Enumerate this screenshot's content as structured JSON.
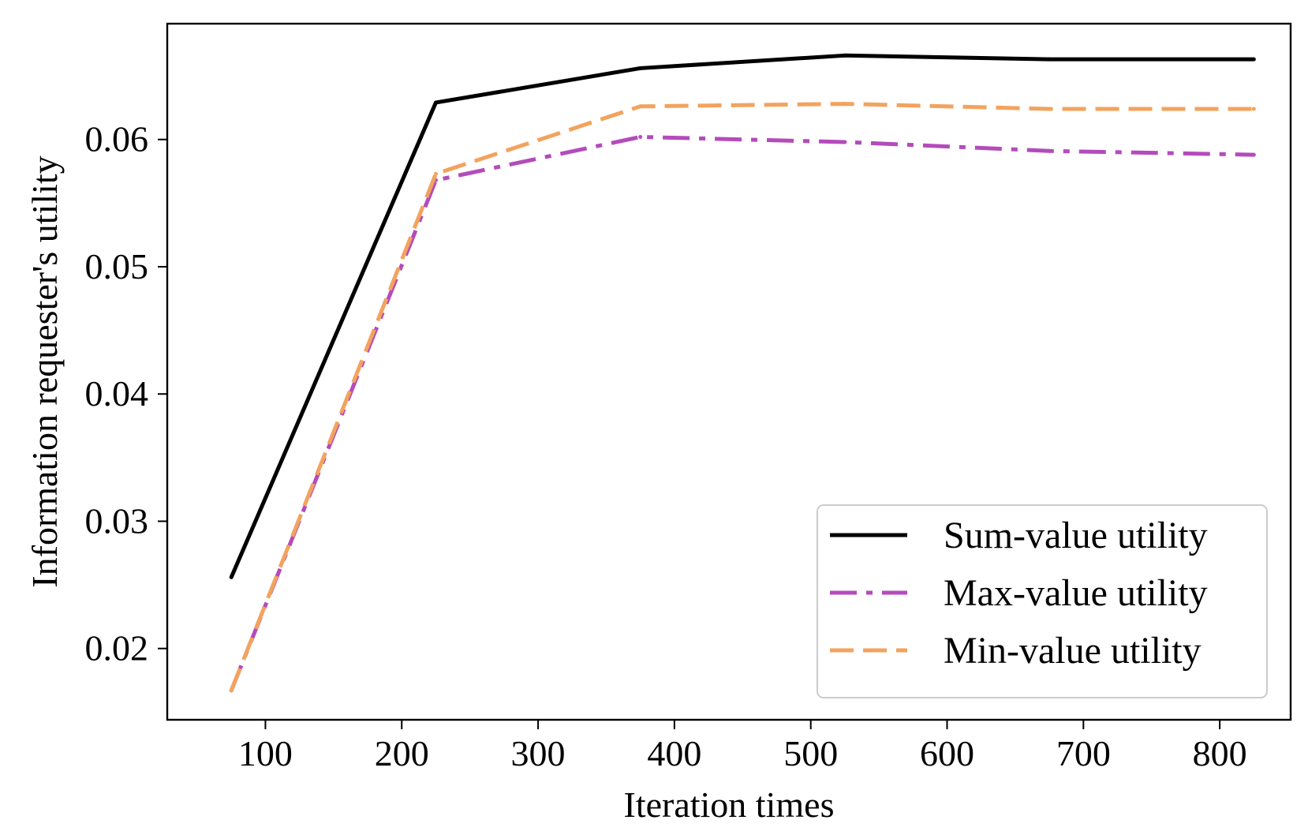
{
  "chart_data": {
    "type": "line",
    "title": "",
    "xlabel": "Iteration times",
    "ylabel": "Information requester's utility",
    "xlim": [
      28,
      852
    ],
    "ylim": [
      0.0144,
      0.0691
    ],
    "xticks": [
      100,
      200,
      300,
      400,
      500,
      600,
      700,
      800
    ],
    "yticks": [
      0.02,
      0.03,
      0.04,
      0.05,
      0.06
    ],
    "ytick_labels": [
      "0.02",
      "0.03",
      "0.04",
      "0.05",
      "0.06"
    ],
    "grid": false,
    "legend_position": "lower-right",
    "x": [
      75,
      225,
      375,
      525,
      675,
      825
    ],
    "series": [
      {
        "name": "Sum-value utility",
        "color": "#000000",
        "style": "solid",
        "values": [
          0.0256,
          0.0629,
          0.0656,
          0.0666,
          0.0663,
          0.0663
        ]
      },
      {
        "name": "Max-value utility",
        "color": "#b44bbb",
        "style": "dashdot",
        "values": [
          0.0167,
          0.0568,
          0.0602,
          0.0598,
          0.0591,
          0.0588
        ]
      },
      {
        "name": "Min-value utility",
        "color": "#f2a35e",
        "style": "dashed",
        "values": [
          0.0167,
          0.0573,
          0.0626,
          0.0628,
          0.0624,
          0.0624
        ]
      }
    ]
  }
}
